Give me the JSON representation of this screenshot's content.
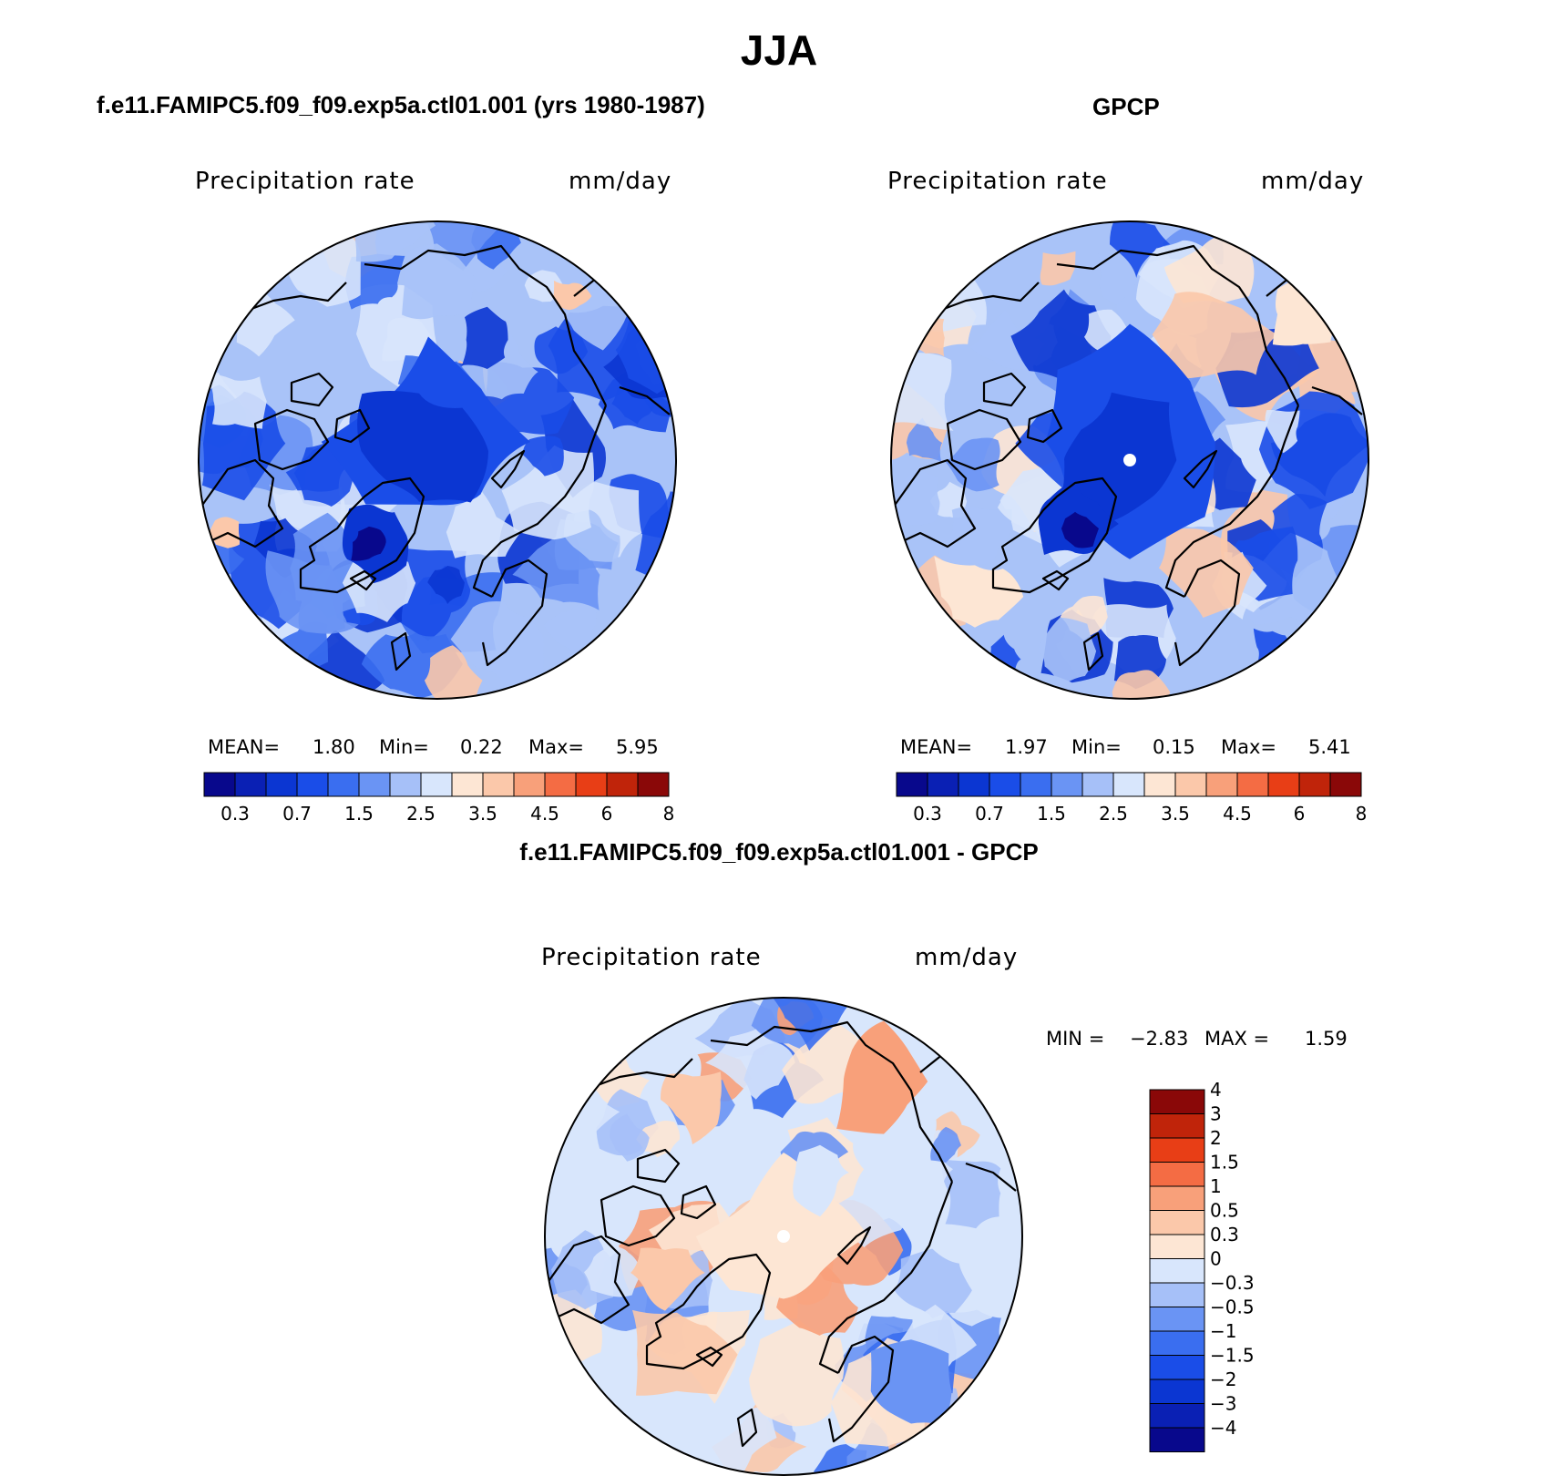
{
  "title": "JJA",
  "panels": [
    {
      "id": "model",
      "title": "f.e11.FAMIPC5.f09_f09.exp5a.ctl01.001 (yrs 1980-1987)",
      "variable": "Precipitation rate",
      "units": "mm/day",
      "mean_label": "MEAN=",
      "mean": "1.80",
      "min_label": "Min=",
      "min": "0.22",
      "max_label": "Max=",
      "max": "5.95",
      "pole_marker": false
    },
    {
      "id": "obs",
      "title": "GPCP",
      "variable": "Precipitation rate",
      "units": "mm/day",
      "mean_label": "MEAN=",
      "mean": "1.97",
      "min_label": "Min=",
      "min": "0.15",
      "max_label": "Max=",
      "max": "5.41",
      "pole_marker": true
    },
    {
      "id": "diff",
      "title": "f.e11.FAMIPC5.f09_f09.exp5a.ctl01.001 - GPCP",
      "variable": "Precipitation rate",
      "units": "mm/day",
      "min_label": "MIN =",
      "min": "−2.83",
      "max_label": "MAX =",
      "max": "1.59",
      "pole_marker": true
    }
  ],
  "colorbar_abs": {
    "colors": [
      "#08088c",
      "#0a20b4",
      "#0b36d2",
      "#1a4de8",
      "#3a6ef0",
      "#6a94f4",
      "#a6c0f8",
      "#d8e6fc",
      "#fde6d4",
      "#fbc8aa",
      "#f8a07a",
      "#f46c44",
      "#e83e16",
      "#c0240a",
      "#8a0808"
    ],
    "tick_labels": [
      "0.3",
      "0.7",
      "1.5",
      "2.5",
      "3.5",
      "4.5",
      "6",
      "8"
    ]
  },
  "colorbar_diff": {
    "colors": [
      "#08088c",
      "#0a20b4",
      "#0b36d2",
      "#1a4de8",
      "#3a6ef0",
      "#6a94f4",
      "#a6c0f8",
      "#d8e6fc",
      "#fde6d4",
      "#fbc8aa",
      "#f8a07a",
      "#f46c44",
      "#e83e16",
      "#c0240a",
      "#8a0808"
    ],
    "tick_labels": [
      "−4",
      "−3",
      "−2",
      "−1.5",
      "−1",
      "−0.5",
      "−0.3",
      "0",
      "0.3",
      "0.5",
      "1",
      "1.5",
      "2",
      "3",
      "4"
    ]
  },
  "map_palette": {
    "model": [
      "#a9c3f8",
      "#3a6ef0",
      "#1a4de8",
      "#0b36d2",
      "#6a94f4",
      "#d8e6fc",
      "#fbc8aa"
    ],
    "obs": [
      "#a9c3f8",
      "#6a94f4",
      "#1a4de8",
      "#0b36d2",
      "#d8e6fc",
      "#fde6d4",
      "#fbc8aa"
    ],
    "diff": [
      "#d8e6fc",
      "#a6c0f8",
      "#6a94f4",
      "#3a6ef0",
      "#fde6d4",
      "#fbc8aa",
      "#f8a07a"
    ]
  }
}
